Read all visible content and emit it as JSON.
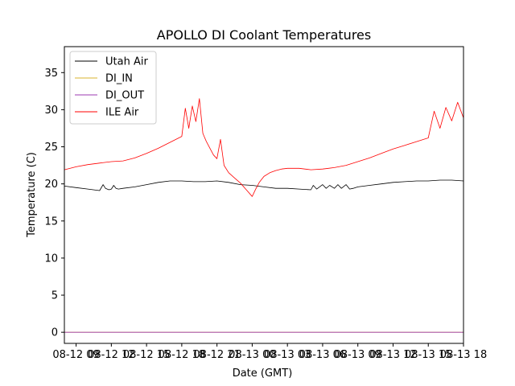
{
  "chart_data": {
    "type": "line",
    "title": "APOLLO DI Coolant Temperatures",
    "xlabel": "Date (GMT)",
    "ylabel": "Temperature (C)",
    "ylim": [
      -1.5,
      38.5
    ],
    "xlim": [
      0,
      34
    ],
    "x_unit": "hours since 08-12 08:00 GMT",
    "yticks": [
      0,
      5,
      10,
      15,
      20,
      25,
      30,
      35
    ],
    "xticks": [
      {
        "x": 1,
        "label": "08-12 09"
      },
      {
        "x": 4,
        "label": "08-12 12"
      },
      {
        "x": 7,
        "label": "08-12 15"
      },
      {
        "x": 10,
        "label": "08-12 18"
      },
      {
        "x": 13,
        "label": "08-12 21"
      },
      {
        "x": 16,
        "label": "08-13 00"
      },
      {
        "x": 19,
        "label": "08-13 03"
      },
      {
        "x": 22,
        "label": "08-13 06"
      },
      {
        "x": 25,
        "label": "08-13 09"
      },
      {
        "x": 28,
        "label": "08-13 12"
      },
      {
        "x": 31,
        "label": "08-13 15"
      },
      {
        "x": 34,
        "label": "08-13 18"
      }
    ],
    "grid": false,
    "legend_position": "top-left",
    "series": [
      {
        "name": "Utah Air",
        "color": "#000000",
        "x": [
          0,
          1,
          2,
          3,
          3.3,
          3.5,
          3.8,
          4,
          4.2,
          4.4,
          4.6,
          5,
          6,
          7,
          8,
          9,
          10,
          11,
          12,
          13,
          14,
          15,
          16,
          17,
          18,
          19,
          20,
          21,
          21.2,
          21.5,
          22,
          22.3,
          22.6,
          23,
          23.3,
          23.6,
          24,
          24.3,
          24.6,
          25,
          26,
          27,
          28,
          29,
          30,
          31,
          32,
          33,
          34
        ],
        "values": [
          19.7,
          19.5,
          19.3,
          19.1,
          19.9,
          19.4,
          19.2,
          19.3,
          19.8,
          19.4,
          19.3,
          19.4,
          19.6,
          19.9,
          20.2,
          20.4,
          20.4,
          20.3,
          20.3,
          20.4,
          20.2,
          19.9,
          19.8,
          19.6,
          19.4,
          19.4,
          19.3,
          19.2,
          19.8,
          19.3,
          19.9,
          19.4,
          19.8,
          19.4,
          19.9,
          19.4,
          19.9,
          19.3,
          19.4,
          19.6,
          19.8,
          20.0,
          20.2,
          20.3,
          20.4,
          20.4,
          20.5,
          20.5,
          20.4
        ]
      },
      {
        "name": "DI_IN",
        "color": "#dab32c",
        "x": [
          0,
          34
        ],
        "values": [
          0,
          0
        ]
      },
      {
        "name": "DI_OUT",
        "color": "#9c38b0",
        "x": [
          0,
          34
        ],
        "values": [
          0,
          0
        ]
      },
      {
        "name": "ILE Air",
        "color": "#ff0000",
        "x": [
          0,
          1,
          2,
          3,
          4,
          5,
          6,
          7,
          8,
          9,
          10,
          10.3,
          10.6,
          10.9,
          11.2,
          11.5,
          11.8,
          12.1,
          12.4,
          12.7,
          13,
          13.3,
          13.6,
          14,
          14.5,
          15,
          15.5,
          16,
          16.3,
          16.6,
          17,
          17.5,
          18,
          18.5,
          19,
          20,
          21,
          22,
          22.5,
          23,
          24,
          25,
          26,
          27,
          28,
          29,
          30,
          31,
          31.5,
          32,
          32.5,
          33,
          33.5,
          34
        ],
        "values": [
          21.9,
          22.3,
          22.6,
          22.8,
          23.0,
          23.1,
          23.5,
          24.1,
          24.8,
          25.6,
          26.4,
          30.2,
          27.5,
          30.5,
          28.4,
          31.5,
          26.8,
          25.7,
          24.8,
          23.9,
          23.4,
          26.0,
          22.5,
          21.5,
          20.8,
          20.1,
          19.2,
          18.3,
          19.3,
          20.2,
          21.0,
          21.5,
          21.8,
          22.0,
          22.1,
          22.1,
          21.9,
          22.0,
          22.1,
          22.2,
          22.5,
          23.0,
          23.5,
          24.1,
          24.7,
          25.2,
          25.7,
          26.2,
          29.8,
          27.5,
          30.3,
          28.5,
          31.0,
          28.9
        ]
      }
    ]
  }
}
